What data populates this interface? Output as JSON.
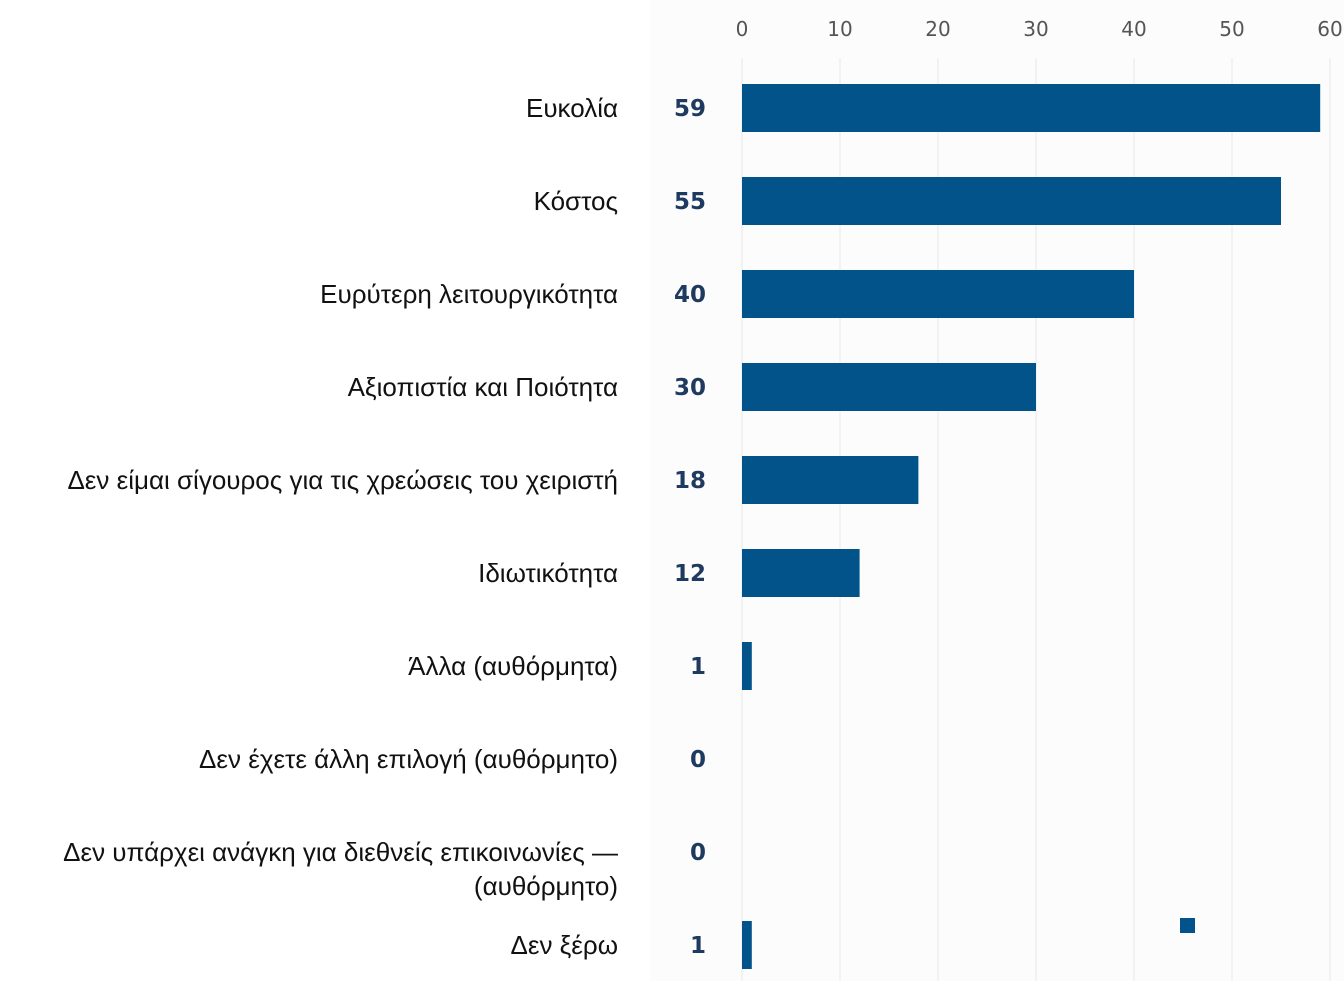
{
  "chart_data": {
    "type": "bar",
    "orientation": "horizontal",
    "categories": [
      "Ευκολία",
      "Κόστος",
      "Ευρύτερη λειτουργικότητα",
      "Αξιοπιστία και Ποιότητα",
      "Δεν είμαι σίγουρος για τις χρεώσεις του χειριστή",
      "Ιδιωτικότητα",
      "Άλλα (αυθόρμητα)",
      "Δεν έχετε άλλη επιλογή (αυθόρμητο)",
      "Δεν υπάρχει ανάγκη για διεθνείς επικοινωνίες — (αυθόρμητο)",
      "Δεν ξέρω"
    ],
    "values": [
      59,
      55,
      40,
      30,
      18,
      12,
      1,
      0,
      0,
      1
    ],
    "value_labels": [
      "59",
      "55",
      "40",
      "30",
      "18",
      "12",
      "1",
      "0",
      "0",
      "1"
    ],
    "xlim": [
      0,
      60
    ],
    "x_ticks": [
      "0",
      "10",
      "20",
      "30",
      "40",
      "50",
      "60"
    ],
    "x_axis_position": "top",
    "grid": true,
    "legend": "bottom-right (marker only, no text)",
    "title": "",
    "xlabel": "",
    "ylabel": "",
    "colors": {
      "bar": "#02538A",
      "value_label": "#1F3A5F",
      "tick_label": "#555555",
      "grid": "#E8E8E8"
    }
  }
}
